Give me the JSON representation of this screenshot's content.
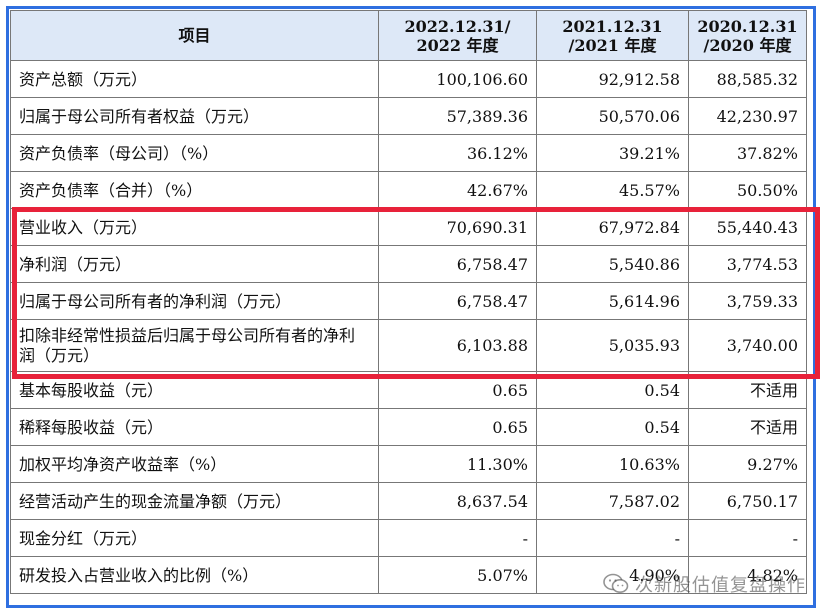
{
  "table": {
    "headers": [
      {
        "line1": "项目",
        "line2": ""
      },
      {
        "line1": "2022.12.31/",
        "line2": "2022 年度"
      },
      {
        "line1": "2021.12.31",
        "line2": "/2021 年度"
      },
      {
        "line1": "2020.12.31",
        "line2": "/2020 年度"
      }
    ],
    "rows": [
      {
        "label": "资产总额（万元）",
        "v2022": "100,106.60",
        "v2021": "92,912.58",
        "v2020": "88,585.32"
      },
      {
        "label": "归属于母公司所有者权益（万元）",
        "v2022": "57,389.36",
        "v2021": "50,570.06",
        "v2020": "42,230.97"
      },
      {
        "label": "资产负债率（母公司）（%）",
        "v2022": "36.12%",
        "v2021": "39.21%",
        "v2020": "37.82%"
      },
      {
        "label": "资产负债率（合并）（%）",
        "v2022": "42.67%",
        "v2021": "45.57%",
        "v2020": "50.50%"
      },
      {
        "label": "营业收入（万元）",
        "v2022": "70,690.31",
        "v2021": "67,972.84",
        "v2020": "55,440.43"
      },
      {
        "label": "净利润（万元）",
        "v2022": "6,758.47",
        "v2021": "5,540.86",
        "v2020": "3,774.53"
      },
      {
        "label": "归属于母公司所有者的净利润（万元）",
        "v2022": "6,758.47",
        "v2021": "5,614.96",
        "v2020": "3,759.33"
      },
      {
        "label": "扣除非经常性损益后归属于母公司所有者的净利润（万元）",
        "v2022": "6,103.88",
        "v2021": "5,035.93",
        "v2020": "3,740.00"
      },
      {
        "label": "基本每股收益（元）",
        "v2022": "0.65",
        "v2021": "0.54",
        "v2020": "不适用"
      },
      {
        "label": "稀释每股收益（元）",
        "v2022": "0.65",
        "v2021": "0.54",
        "v2020": "不适用"
      },
      {
        "label": "加权平均净资产收益率（%）",
        "v2022": "11.30%",
        "v2021": "10.63%",
        "v2020": "9.27%"
      },
      {
        "label": "经营活动产生的现金流量净额（万元）",
        "v2022": "8,637.54",
        "v2021": "7,587.02",
        "v2020": "6,750.17"
      },
      {
        "label": "现金分红（万元）",
        "v2022": "-",
        "v2021": "-",
        "v2020": "-"
      },
      {
        "label": "研发投入占营业收入的比例（%）",
        "v2022": "5.07%",
        "v2021": "4.90%",
        "v2020": "4.82%"
      }
    ]
  },
  "watermark": {
    "text": "次新股估值复盘操作",
    "icon": "wechat-icon"
  },
  "colors": {
    "frame": "#2f6fe0",
    "highlight": "#e8223a",
    "header_bg": "#dde8f7"
  }
}
